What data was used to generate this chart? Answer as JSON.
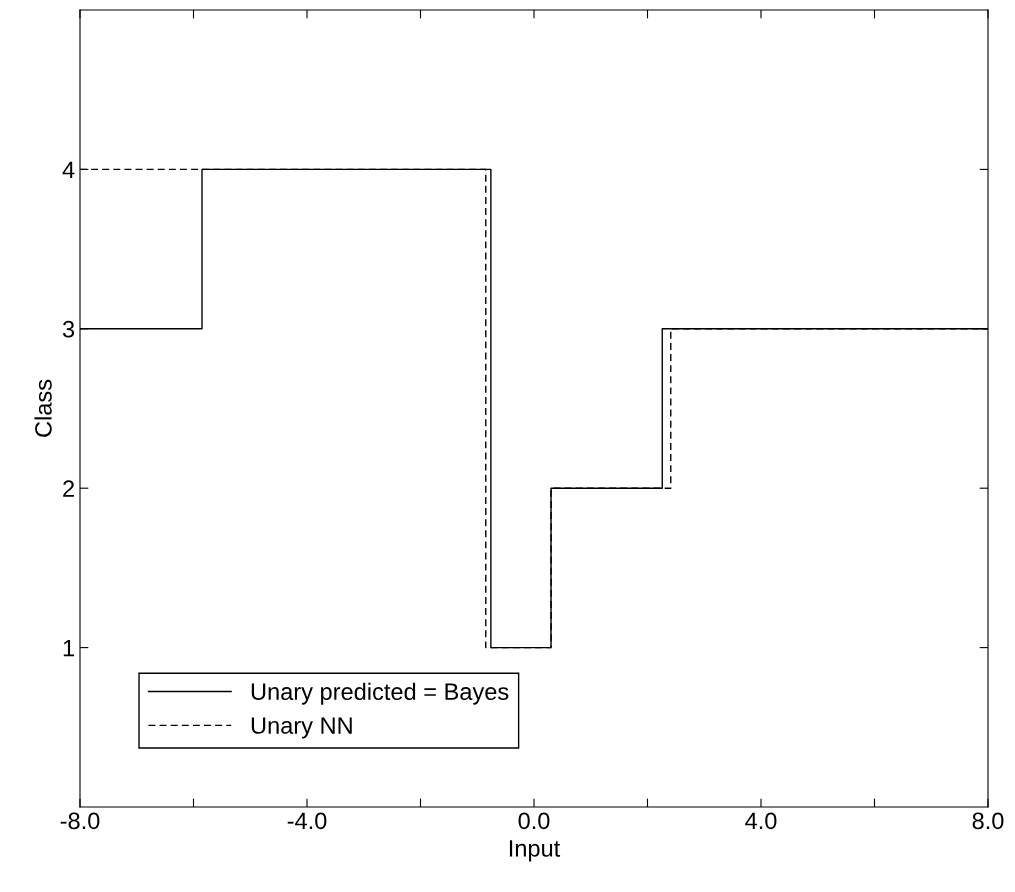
{
  "chart_data": {
    "type": "step",
    "xlabel": "Input",
    "ylabel": "Class",
    "series": [
      {
        "name": "Unary predicted = Bayes",
        "color": "#000000",
        "line_style": "solid",
        "x": [
          -8,
          -5.85,
          -0.76,
          0.3,
          2.26,
          8
        ],
        "values": [
          3,
          4,
          1,
          2,
          3,
          3
        ]
      },
      {
        "name": "Unary NN",
        "color": "#000000",
        "line_style": "dashed",
        "x": [
          -8,
          -0.85,
          0.3,
          2.41,
          8
        ],
        "values": [
          4,
          1,
          2,
          3,
          3
        ]
      }
    ],
    "xlim": [
      -8,
      8
    ],
    "ylim": [
      0,
      5
    ],
    "xticks": [
      {
        "value": -8,
        "label": "-8.0"
      },
      {
        "value": -6,
        "label": null
      },
      {
        "value": -4,
        "label": "-4.0"
      },
      {
        "value": -2,
        "label": null
      },
      {
        "value": 0,
        "label": "0.0"
      },
      {
        "value": 2,
        "label": null
      },
      {
        "value": 4,
        "label": "4.0"
      },
      {
        "value": 6,
        "label": null
      },
      {
        "value": 8,
        "label": "8.0"
      }
    ],
    "yticks": [
      1,
      2,
      3,
      4
    ],
    "grid": false,
    "legend": "bottom left"
  }
}
